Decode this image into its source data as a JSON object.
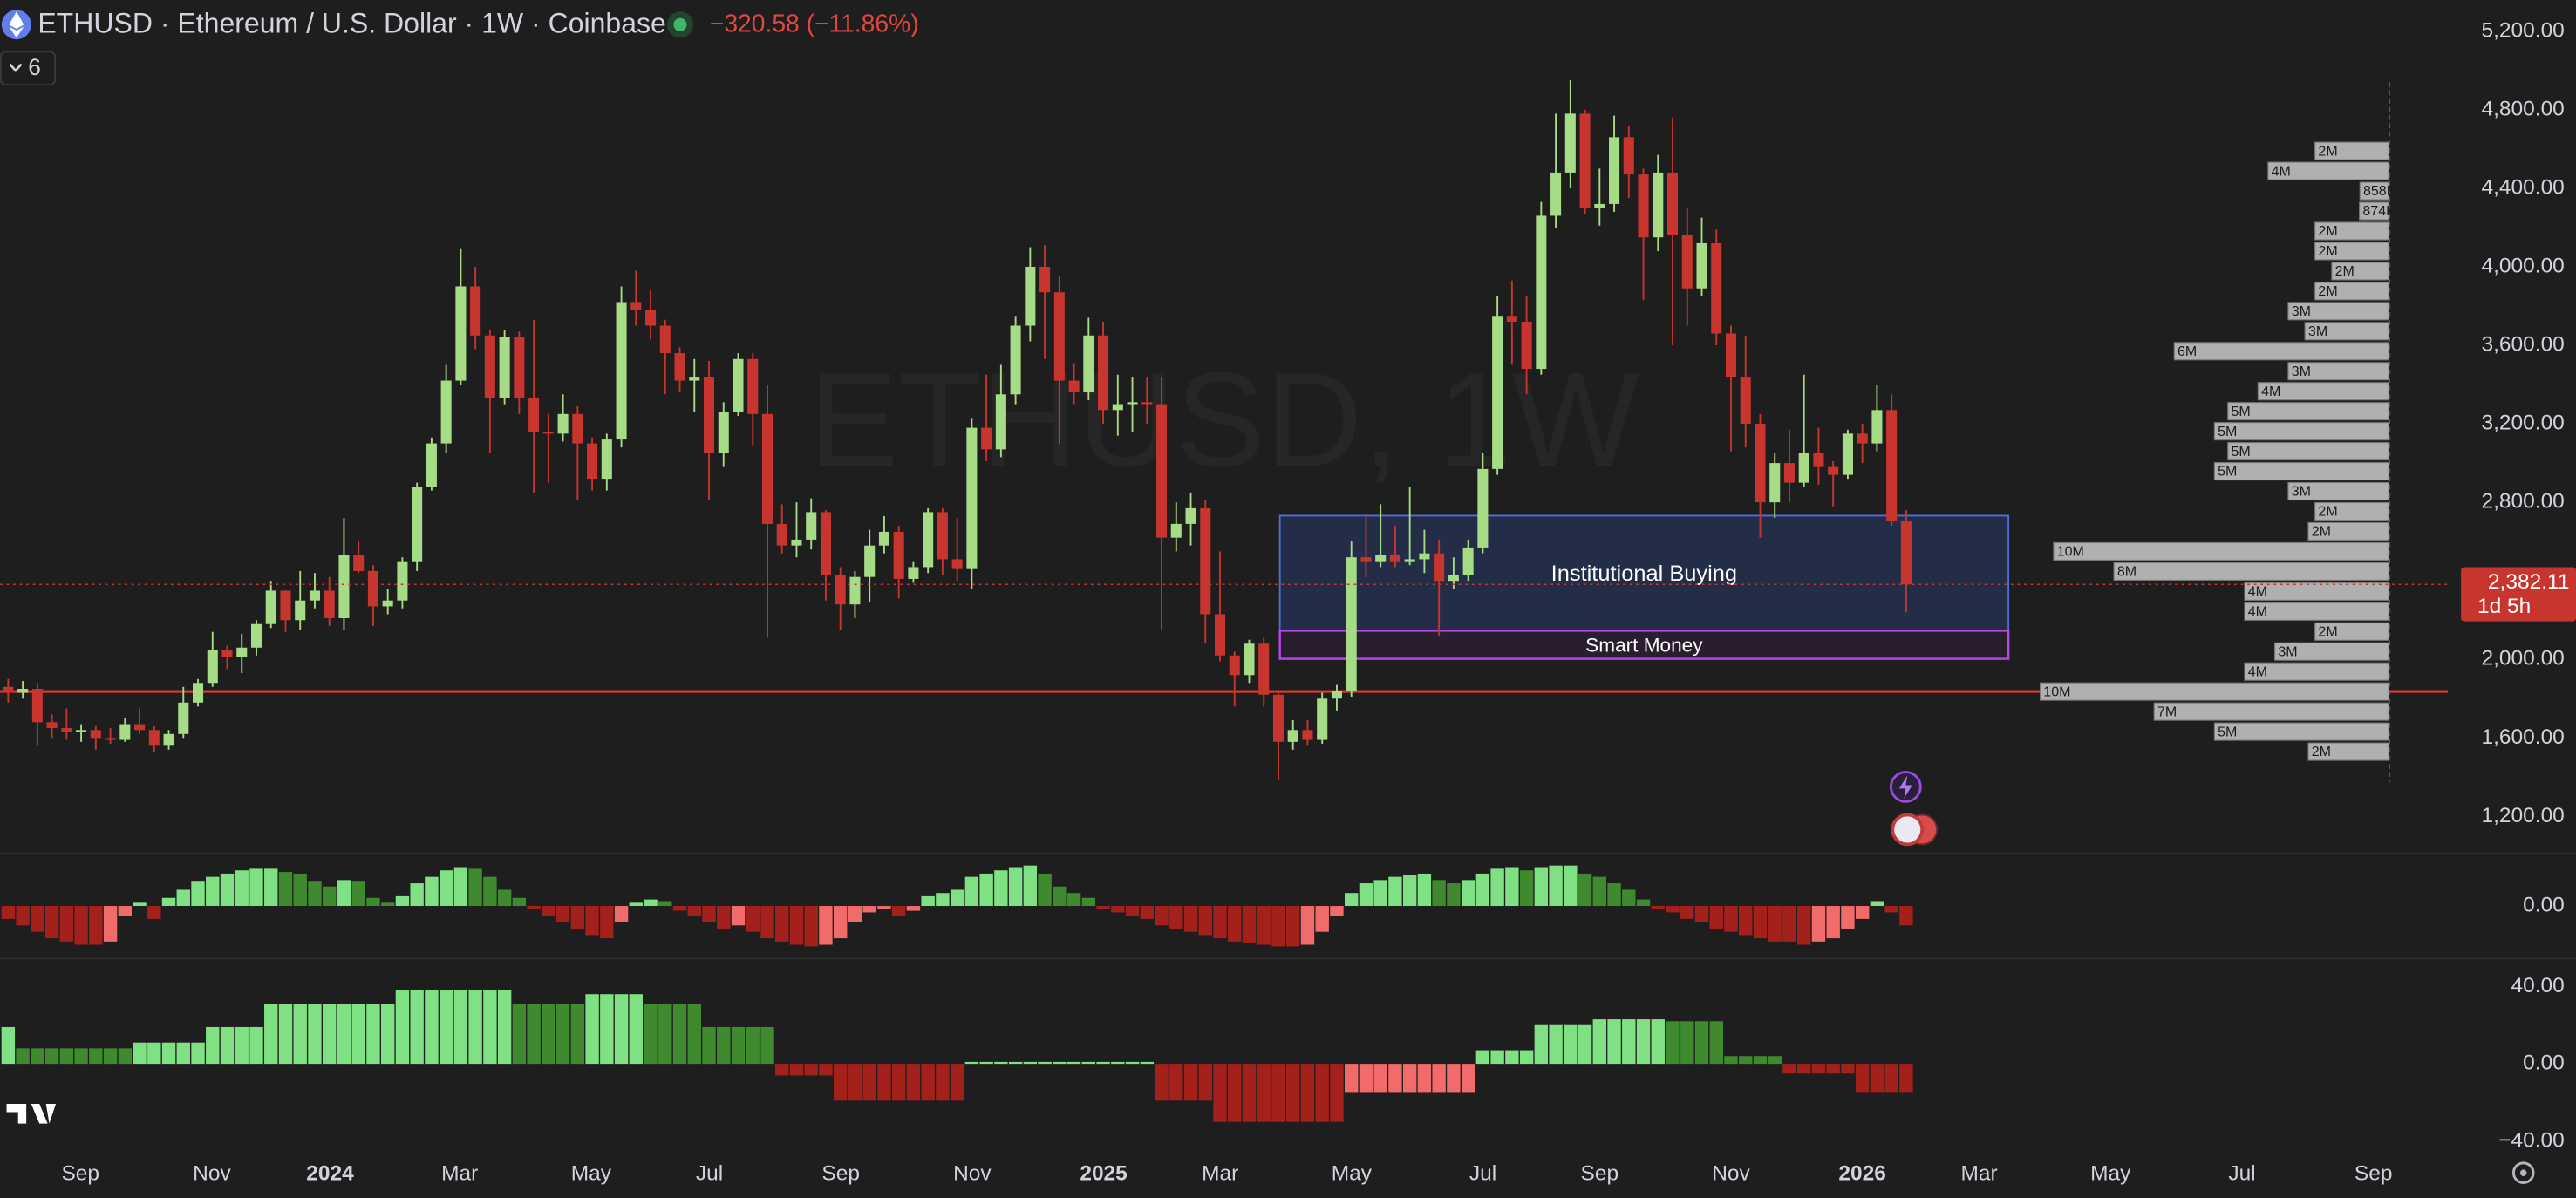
{
  "header": {
    "symbol_line": "ETHUSD · Ethereum / U.S. Dollar · 1W · Coinbase",
    "change": "−320.58 (−11.86%)",
    "indicator_count": 6,
    "watermark": "ETHUSD, 1W"
  },
  "chart_data": {
    "type": "candlestick",
    "colors": {
      "up": "#a6dc86",
      "down": "#c8352e"
    },
    "xlim": [
      -0.56,
      167.1
    ],
    "xticks": [
      {
        "value": 4.95,
        "label": "Sep"
      },
      {
        "value": 13.95,
        "label": "Nov"
      },
      {
        "value": 22.05,
        "label": "2024"
      },
      {
        "value": 30.93,
        "label": "Mar"
      },
      {
        "value": 39.93,
        "label": "May"
      },
      {
        "value": 48.03,
        "label": "Jul"
      },
      {
        "value": 57.03,
        "label": "Sep"
      },
      {
        "value": 66.03,
        "label": "Nov"
      },
      {
        "value": 75.03,
        "label": "2025"
      },
      {
        "value": 83.01,
        "label": "Mar"
      },
      {
        "value": 92.01,
        "label": "May"
      },
      {
        "value": 101.01,
        "label": "Jul"
      },
      {
        "value": 109.0,
        "label": "Sep"
      },
      {
        "value": 118.0,
        "label": "Nov"
      },
      {
        "value": 127.0,
        "label": "2026"
      },
      {
        "value": 135.0,
        "label": "Mar"
      },
      {
        "value": 144.0,
        "label": "May"
      },
      {
        "value": 153.0,
        "label": "Jul"
      },
      {
        "value": 162.0,
        "label": "Sep"
      }
    ],
    "ylim": [
      1016,
      5359
    ],
    "yticks": [
      {
        "value": 1200,
        "label": "1,200.00"
      },
      {
        "value": 1600,
        "label": "1,600.00"
      },
      {
        "value": 2000,
        "label": "2,000.00"
      },
      {
        "value": 2400,
        "label": "2,400.00"
      },
      {
        "value": 2800,
        "label": "2,800.00"
      },
      {
        "value": 3200,
        "label": "3,200.00"
      },
      {
        "value": 3600,
        "label": "3,600.00"
      },
      {
        "value": 4000,
        "label": "4,000.00"
      },
      {
        "value": 4400,
        "label": "4,400.00"
      },
      {
        "value": 4800,
        "label": "4,800.00"
      },
      {
        "value": 5200,
        "label": "5,200.00"
      }
    ],
    "open": [
      1860,
      1830,
      1850,
      1680,
      1650,
      1630,
      1640,
      1600,
      1590,
      1670,
      1640,
      1560,
      1620,
      1780,
      1880,
      2050,
      2010,
      2060,
      2180,
      2350,
      2200,
      2300,
      2350,
      2210,
      2530,
      2450,
      2270,
      2300,
      2500,
      2880,
      3100,
      3420,
      3900,
      3650,
      3330,
      3640,
      3330,
      3160,
      3150,
      3250,
      3100,
      2920,
      3120,
      3820,
      3780,
      3700,
      3560,
      3420,
      3440,
      3050,
      3260,
      3530,
      3250,
      2690,
      2580,
      2610,
      2750,
      2430,
      2280,
      2420,
      2580,
      2650,
      2410,
      2470,
      2750,
      2510,
      2460,
      3180,
      3070,
      3350,
      3700,
      4000,
      3870,
      3420,
      3360,
      3650,
      3270,
      3300,
      3310,
      3300,
      2620,
      2690,
      2770,
      2230,
      2020,
      1920,
      2080,
      1820,
      1580,
      1640,
      1590,
      1800,
      1840,
      2520,
      2500,
      2530,
      2500,
      2510,
      2540,
      2400,
      2430,
      2570,
      2970,
      3750,
      3720,
      3480,
      4260,
      4480,
      4780,
      4300,
      4320,
      4660,
      4470,
      4150,
      4480,
      4160,
      3890,
      4120,
      3660,
      3440,
      3200,
      2800,
      3000,
      2900,
      3050,
      2980,
      2940,
      3150,
      3100,
      3270,
      2702.69
    ],
    "high": [
      1900,
      1890,
      1880,
      1720,
      1750,
      1670,
      1660,
      1650,
      1700,
      1750,
      1660,
      1640,
      1860,
      1900,
      2140,
      2070,
      2130,
      2200,
      2400,
      2350,
      2450,
      2440,
      2420,
      2720,
      2600,
      2480,
      2360,
      2520,
      2900,
      3130,
      3500,
      4090,
      4000,
      3680,
      3680,
      3670,
      3730,
      3250,
      3350,
      3290,
      3130,
      3150,
      3900,
      3980,
      3880,
      3730,
      3590,
      3530,
      3520,
      3310,
      3560,
      3560,
      3400,
      2790,
      2800,
      2820,
      2760,
      2470,
      2450,
      2660,
      2730,
      2680,
      2500,
      2770,
      2770,
      2720,
      3230,
      3450,
      3500,
      3750,
      4100,
      4110,
      3950,
      3510,
      3740,
      3720,
      3450,
      3440,
      3440,
      3440,
      2800,
      2850,
      2810,
      2550,
      2040,
      2100,
      2110,
      1830,
      1690,
      1690,
      1830,
      1870,
      2600,
      2740,
      2790,
      2680,
      2880,
      2660,
      2610,
      2520,
      2610,
      3050,
      3850,
      3930,
      3850,
      4330,
      4780,
      4950,
      4800,
      4500,
      4770,
      4720,
      4500,
      4570,
      4760,
      4300,
      4250,
      4190,
      3700,
      3650,
      3250,
      3050,
      3170,
      3450,
      3180,
      3010,
      3170,
      3200,
      3400,
      3350,
      2760
    ],
    "low": [
      1780,
      1800,
      1560,
      1600,
      1590,
      1580,
      1540,
      1570,
      1580,
      1620,
      1530,
      1540,
      1600,
      1760,
      1860,
      1950,
      1930,
      2020,
      2160,
      2140,
      2150,
      2260,
      2170,
      2150,
      2440,
      2170,
      2230,
      2260,
      2450,
      2860,
      3050,
      3400,
      3580,
      3050,
      3300,
      3250,
      2850,
      2900,
      3110,
      2810,
      2860,
      2860,
      3080,
      3700,
      3630,
      3350,
      3360,
      3260,
      2810,
      2980,
      3240,
      3090,
      2110,
      2540,
      2520,
      2560,
      2300,
      2150,
      2210,
      2290,
      2540,
      2310,
      2390,
      2440,
      2430,
      2400,
      2360,
      3010,
      3030,
      3300,
      3620,
      3530,
      3100,
      3300,
      3320,
      3200,
      3140,
      3160,
      3200,
      2150,
      2550,
      2580,
      2080,
      1990,
      1760,
      1880,
      1760,
      1385,
      1540,
      1560,
      1570,
      1740,
      1810,
      2420,
      2470,
      2470,
      2480,
      2440,
      2120,
      2360,
      2400,
      2540,
      2940,
      3500,
      3350,
      3450,
      4200,
      4400,
      4270,
      4210,
      4280,
      4350,
      3830,
      4080,
      3600,
      3700,
      3850,
      3600,
      3060,
      3080,
      2620,
      2720,
      2800,
      2880,
      2890,
      2780,
      2920,
      3000,
      3060,
      2680,
      2240
    ],
    "close": [
      1830,
      1850,
      1680,
      1650,
      1630,
      1640,
      1600,
      1590,
      1670,
      1640,
      1560,
      1620,
      1780,
      1880,
      2050,
      2010,
      2060,
      2180,
      2350,
      2200,
      2300,
      2350,
      2210,
      2530,
      2450,
      2270,
      2300,
      2500,
      2880,
      3100,
      3420,
      3900,
      3650,
      3330,
      3640,
      3330,
      3160,
      3150,
      3250,
      3100,
      2920,
      3120,
      3820,
      3780,
      3700,
      3560,
      3420,
      3440,
      3050,
      3260,
      3530,
      3250,
      2690,
      2580,
      2610,
      2750,
      2430,
      2280,
      2420,
      2580,
      2650,
      2410,
      2470,
      2750,
      2510,
      2460,
      3180,
      3070,
      3350,
      3700,
      4000,
      3870,
      3420,
      3360,
      3650,
      3270,
      3300,
      3310,
      3300,
      2620,
      2690,
      2770,
      2230,
      2020,
      1920,
      2080,
      1820,
      1580,
      1640,
      1590,
      1800,
      1840,
      2520,
      2500,
      2530,
      2500,
      2510,
      2540,
      2400,
      2430,
      2570,
      2970,
      3750,
      3720,
      3480,
      4260,
      4480,
      4780,
      4300,
      4320,
      4660,
      4470,
      4150,
      4480,
      4160,
      3890,
      4120,
      3660,
      3440,
      3200,
      2800,
      3000,
      2900,
      3050,
      2980,
      2940,
      3150,
      3100,
      3270,
      2702.69,
      2382.11
    ],
    "last_price": {
      "value": 2382.11,
      "label": "2,382.11",
      "countdown": "1d 5h",
      "color": "#c8352e"
    },
    "hline": {
      "price": 1836,
      "color": "#e8392c"
    },
    "zones": [
      {
        "label": "Institutional Buying",
        "top": 2732,
        "bottom": 2146,
        "start": 87.1,
        "end": 137.0,
        "fill": "#26304f",
        "stroke": "#4f6fd8"
      },
      {
        "label": "Smart Money",
        "top": 2146,
        "bottom": 2003,
        "start": 87.1,
        "end": 137.0,
        "fill": "#2a1f33",
        "stroke": "#b548e6"
      }
    ],
    "volume_profile": {
      "color": "#b0b0b0",
      "prices": [
        4590,
        4488,
        4386,
        4284,
        4182,
        4080,
        3978,
        3876,
        3774,
        3672,
        3570,
        3468,
        3366,
        3264,
        3162,
        3060,
        2958,
        2856,
        2754,
        2652,
        2550,
        2448,
        2346,
        2244,
        2142,
        2040,
        1938,
        1836,
        1734,
        1632,
        1530
      ],
      "values": [
        2200000,
        3600000,
        858000,
        874000,
        2200000,
        2200000,
        1700000,
        2200000,
        3000000,
        2500000,
        6400000,
        3000000,
        3900000,
        4800000,
        5200000,
        4800000,
        5200000,
        3000000,
        2200000,
        2400000,
        10000000,
        8200000,
        4300000,
        4300000,
        2200000,
        3400000,
        4300000,
        10400000,
        7000000,
        5200000,
        2400000
      ],
      "value_labels": [
        "2M",
        "4M",
        "858K",
        "874K",
        "2M",
        "2M",
        "2M",
        "2M",
        "3M",
        "3M",
        "6M",
        "3M",
        "4M",
        "5M",
        "5M",
        "5M",
        "5M",
        "3M",
        "2M",
        "2M",
        "10M",
        "8M",
        "4M",
        "4M",
        "2M",
        "3M",
        "4M",
        "10M",
        "7M",
        "5M",
        "2M"
      ]
    },
    "histogram_colors": {
      "positive_rising": "#7fe183",
      "positive_falling": "#3f8a2e",
      "negative_falling": "#a3201b",
      "negative_rising": "#f26b6b"
    },
    "panes": [
      {
        "ylim": [
          -32,
          32
        ],
        "yticks": [
          {
            "value": 0,
            "label": "0.00"
          }
        ],
        "values": [
          -8,
          -12,
          -16,
          -20,
          -22,
          -24,
          -24,
          -22,
          -6,
          2,
          -8,
          5,
          10,
          15,
          18,
          20,
          22,
          23,
          23,
          21,
          20,
          15,
          12,
          16,
          15,
          5,
          2,
          6,
          14,
          18,
          22,
          24,
          23,
          18,
          10,
          5,
          -2,
          -6,
          -10,
          -14,
          -18,
          -20,
          -10,
          2,
          4,
          3,
          -3,
          -6,
          -10,
          -14,
          -12,
          -16,
          -20,
          -22,
          -24,
          -25,
          -24,
          -20,
          -10,
          -4,
          -2,
          -6,
          -3,
          6,
          8,
          10,
          18,
          20,
          22,
          24,
          25,
          20,
          12,
          8,
          5,
          -2,
          -4,
          -6,
          -8,
          -12,
          -14,
          -16,
          -18,
          -20,
          -22,
          -23,
          -24,
          -25,
          -25,
          -24,
          -16,
          -6,
          8,
          14,
          16,
          18,
          19,
          20,
          16,
          14,
          16,
          20,
          23,
          24,
          22,
          24,
          25,
          25,
          20,
          18,
          14,
          10,
          4,
          -2,
          -4,
          -8,
          -10,
          -14,
          -16,
          -18,
          -20,
          -22,
          -22,
          -24,
          -22,
          -20,
          -14,
          -8,
          3,
          -4,
          -12
        ]
      },
      {
        "ylim": [
          -47,
          54
        ],
        "yticks": [
          {
            "value": 40,
            "label": "40.00"
          },
          {
            "value": 0,
            "label": "0.00"
          },
          {
            "value": -40,
            "label": "−40.00"
          }
        ],
        "values": [
          19,
          8,
          8,
          8,
          8,
          8,
          8,
          8,
          8,
          11,
          11,
          11,
          11,
          11,
          19,
          19,
          19,
          19,
          31,
          31,
          31,
          31,
          31,
          31,
          31,
          31,
          31,
          38,
          38,
          38,
          38,
          38,
          38,
          38,
          38,
          31,
          31,
          31,
          31,
          31,
          36,
          36,
          36,
          36,
          31,
          31,
          31,
          31,
          19,
          19,
          19,
          19,
          19,
          -6,
          -6,
          -6,
          -6,
          -19,
          -19,
          -19,
          -19,
          -19,
          -19,
          -19,
          -19,
          -19,
          1,
          1,
          1,
          1,
          1,
          1,
          1,
          1,
          1,
          1,
          1,
          1,
          1,
          -19,
          -19,
          -19,
          -19,
          -30,
          -30,
          -30,
          -30,
          -30,
          -30,
          -30,
          -30,
          -30,
          -15,
          -15,
          -15,
          -15,
          -15,
          -15,
          -15,
          -15,
          -15,
          7,
          7,
          7,
          7,
          20,
          20,
          20,
          20,
          23,
          23,
          23,
          23,
          23,
          22,
          22,
          22,
          22,
          4,
          4,
          4,
          4,
          -5,
          -5,
          -5,
          -5,
          -5,
          -15,
          -15,
          -15,
          -15
        ]
      }
    ]
  }
}
